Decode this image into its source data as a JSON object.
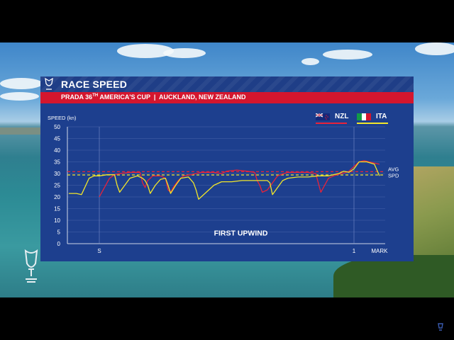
{
  "header": {
    "title": "RACE SPEED",
    "subtitle_prefix": "PRADA 36",
    "subtitle_sup": "TH",
    "subtitle_suffix": " AMERICA'S CUP  |  AUCKLAND, NEW ZEALAND"
  },
  "colors": {
    "nzl": "#e8233a",
    "ita": "#f2e62a",
    "panel": "#1d3f8e",
    "banner": "#d4162e"
  },
  "chart_data": {
    "type": "line",
    "ylabel": "SPEED (kn)",
    "ylim": [
      0,
      50
    ],
    "yticks": [
      0,
      5,
      10,
      15,
      20,
      25,
      30,
      35,
      40,
      45,
      50
    ],
    "x_markers": [
      {
        "label": "S",
        "x": 0
      },
      {
        "label": "1",
        "x": 100
      },
      {
        "label": "MARK",
        "x": 110
      }
    ],
    "xlim": [
      -12,
      110
    ],
    "leg_label": "FIRST UPWIND",
    "avg_label": [
      "AVG",
      "SPD"
    ],
    "grid": true,
    "legend_position": "top-right",
    "series": [
      {
        "name": "NZL",
        "color": "#e8233a",
        "avg": 30.8,
        "values": [
          [
            0,
            20
          ],
          [
            2,
            24
          ],
          [
            4,
            28
          ],
          [
            6,
            29.5
          ],
          [
            8,
            30
          ],
          [
            12,
            30.5
          ],
          [
            16,
            30.5
          ],
          [
            17,
            26
          ],
          [
            18,
            24
          ],
          [
            19,
            27
          ],
          [
            21,
            29
          ],
          [
            24,
            29
          ],
          [
            26,
            28
          ],
          [
            27,
            23
          ],
          [
            28,
            22
          ],
          [
            29,
            24
          ],
          [
            31,
            27
          ],
          [
            33,
            29
          ],
          [
            36,
            29.5
          ],
          [
            40,
            30.5
          ],
          [
            45,
            30.5
          ],
          [
            48,
            30
          ],
          [
            50,
            31
          ],
          [
            54,
            31.5
          ],
          [
            58,
            31
          ],
          [
            61,
            30.5
          ],
          [
            62,
            27
          ],
          [
            63,
            25
          ],
          [
            64,
            22
          ],
          [
            66,
            23
          ],
          [
            68,
            26
          ],
          [
            70,
            29
          ],
          [
            74,
            30.5
          ],
          [
            78,
            30.5
          ],
          [
            82,
            30.5
          ],
          [
            85,
            30
          ],
          [
            86,
            26
          ],
          [
            87,
            22
          ],
          [
            88,
            24
          ],
          [
            90,
            28
          ],
          [
            92,
            29
          ],
          [
            95,
            30
          ],
          [
            97,
            30.5
          ],
          [
            98,
            31
          ],
          [
            100,
            33
          ],
          [
            102,
            35
          ],
          [
            104,
            35.5
          ],
          [
            106,
            35
          ],
          [
            108,
            34.5
          ],
          [
            110,
            34
          ]
        ]
      },
      {
        "name": "ITA",
        "color": "#f2e62a",
        "avg": 29.4,
        "values": [
          [
            -12,
            21.5
          ],
          [
            -9,
            21.5
          ],
          [
            -7,
            21
          ],
          [
            -4,
            28
          ],
          [
            -2,
            29
          ],
          [
            0,
            29
          ],
          [
            3,
            29.5
          ],
          [
            6,
            29.5
          ],
          [
            7,
            25
          ],
          [
            8,
            22
          ],
          [
            10,
            25
          ],
          [
            12,
            28
          ],
          [
            15,
            29
          ],
          [
            17,
            28
          ],
          [
            18,
            27
          ],
          [
            19,
            25
          ],
          [
            20,
            21.5
          ],
          [
            22,
            25
          ],
          [
            24,
            27.5
          ],
          [
            26,
            28
          ],
          [
            27,
            25
          ],
          [
            28,
            21.5
          ],
          [
            30,
            25
          ],
          [
            32,
            28
          ],
          [
            35,
            28.5
          ],
          [
            37,
            26
          ],
          [
            38,
            23
          ],
          [
            39,
            19
          ],
          [
            40,
            20
          ],
          [
            42,
            22
          ],
          [
            45,
            25
          ],
          [
            48,
            26.5
          ],
          [
            52,
            26.5
          ],
          [
            56,
            27
          ],
          [
            62,
            27
          ],
          [
            66,
            27
          ],
          [
            67,
            26
          ],
          [
            68,
            21
          ],
          [
            70,
            24
          ],
          [
            72,
            27
          ],
          [
            74,
            28
          ],
          [
            78,
            28.5
          ],
          [
            82,
            28.5
          ],
          [
            86,
            29
          ],
          [
            90,
            29
          ],
          [
            94,
            30
          ],
          [
            96,
            31
          ],
          [
            98,
            30.5
          ],
          [
            100,
            32
          ],
          [
            102,
            35
          ],
          [
            105,
            35
          ],
          [
            108,
            34
          ],
          [
            110,
            29
          ]
        ]
      }
    ]
  }
}
